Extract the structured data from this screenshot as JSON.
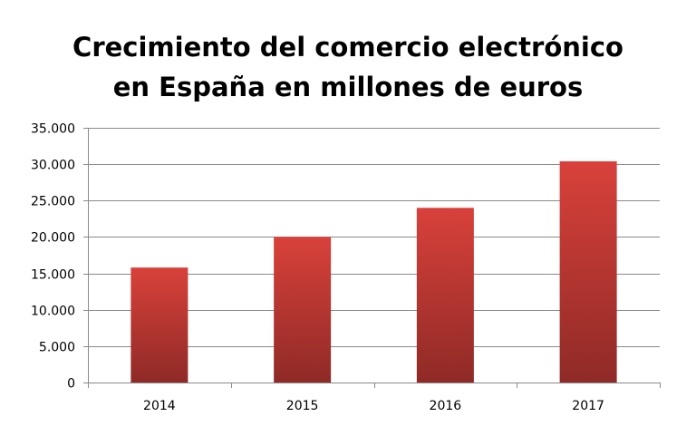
{
  "chart_data": {
    "type": "bar",
    "title_lines": [
      "Crecimiento del comercio electrónico",
      "en España en millones de euros"
    ],
    "categories": [
      "2014",
      "2015",
      "2016",
      "2017"
    ],
    "values": [
      15800,
      20000,
      24000,
      30400
    ],
    "ylim": [
      0,
      35000
    ],
    "yticks": [
      0,
      5000,
      10000,
      15000,
      20000,
      25000,
      30000,
      35000
    ],
    "ytick_labels": [
      "0",
      "5.000",
      "10.000",
      "15.000",
      "20.000",
      "25.000",
      "30.000",
      "35.000"
    ],
    "xlabel": "",
    "ylabel": "",
    "grid": true,
    "legend": "none",
    "bar_color": "#c0392b",
    "bar_color_light": "#d9413b",
    "bar_color_dark": "#8f2a26"
  }
}
